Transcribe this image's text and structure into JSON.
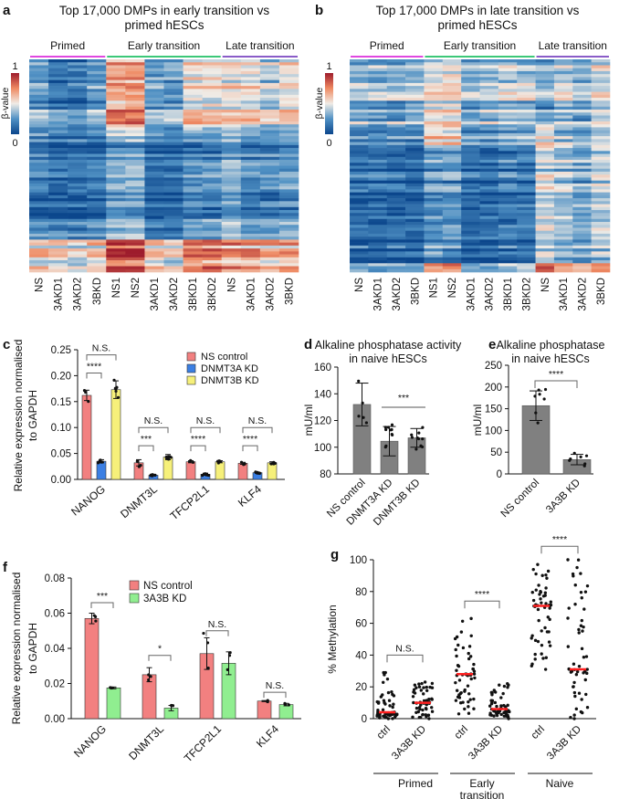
{
  "panel_letters": {
    "a": "a",
    "b": "b",
    "c": "c",
    "d": "d",
    "e": "e",
    "f": "f",
    "g": "g"
  },
  "chart_data": [
    {
      "id": "a",
      "type": "heatmap",
      "title": [
        "Top 17,000 DMPs in early transition vs",
        "primed hESCs"
      ],
      "colorbar": {
        "label": "β-value",
        "min": 0,
        "max": 1,
        "min_label": "0",
        "max_label": "1"
      },
      "groups": [
        {
          "name": "Primed",
          "color": "#e048e0",
          "columns": [
            "NS",
            "3AKD1",
            "3AKD2",
            "3BKD"
          ]
        },
        {
          "name": "Early transition",
          "color": "#3cc878",
          "columns": [
            "NS1",
            "NS2",
            "3AKD1",
            "3AKD2",
            "3BKD1",
            "3BKD2"
          ]
        },
        {
          "name": "Late transition",
          "color": "#8a5cc8",
          "columns": [
            "NS",
            "3AKD1",
            "3AKD2",
            "3BKD"
          ]
        }
      ],
      "approx_cluster_mean_beta": [
        [
          0.3,
          0.2,
          0.15,
          0.55
        ],
        [
          0.2,
          0.15,
          0.12,
          0.5
        ],
        [
          0.2,
          0.15,
          0.12,
          0.45
        ],
        [
          0.3,
          0.2,
          0.15,
          0.55
        ],
        [
          0.7,
          0.45,
          0.3,
          0.85
        ],
        [
          0.72,
          0.45,
          0.3,
          0.88
        ],
        [
          0.3,
          0.15,
          0.12,
          0.55
        ],
        [
          0.3,
          0.15,
          0.12,
          0.5
        ],
        [
          0.55,
          0.35,
          0.2,
          0.75
        ],
        [
          0.55,
          0.35,
          0.2,
          0.75
        ],
        [
          0.55,
          0.35,
          0.3,
          0.7
        ],
        [
          0.55,
          0.3,
          0.2,
          0.65
        ],
        [
          0.45,
          0.25,
          0.2,
          0.6
        ],
        [
          0.55,
          0.3,
          0.25,
          0.65
        ]
      ]
    },
    {
      "id": "b",
      "type": "heatmap",
      "title": [
        "Top 17,000 DMPs in late transition vs",
        "primed hESCs"
      ],
      "colorbar": {
        "label": "β-value",
        "min": 0,
        "max": 1,
        "min_label": "0",
        "max_label": "1"
      },
      "groups": [
        {
          "name": "Primed",
          "color": "#e048e0",
          "columns": [
            "NS",
            "3AKD1",
            "3AKD2",
            "3BKD"
          ]
        },
        {
          "name": "Early transition",
          "color": "#3cc878",
          "columns": [
            "NS1",
            "NS2",
            "3AKD1",
            "3AKD2",
            "3BKD1",
            "3BKD2"
          ]
        },
        {
          "name": "Late transition",
          "color": "#8a5cc8",
          "columns": [
            "NS",
            "3AKD1",
            "3AKD2",
            "3BKD"
          ]
        }
      ],
      "approx_cluster_mean_beta": [
        [
          0.35,
          0.2,
          0.1,
          0.2
        ],
        [
          0.33,
          0.2,
          0.1,
          0.2
        ],
        [
          0.33,
          0.2,
          0.1,
          0.22
        ],
        [
          0.35,
          0.2,
          0.1,
          0.25
        ],
        [
          0.5,
          0.55,
          0.25,
          0.6
        ],
        [
          0.5,
          0.55,
          0.25,
          0.65
        ],
        [
          0.35,
          0.25,
          0.1,
          0.2
        ],
        [
          0.35,
          0.25,
          0.1,
          0.2
        ],
        [
          0.4,
          0.3,
          0.15,
          0.3
        ],
        [
          0.4,
          0.3,
          0.15,
          0.3
        ],
        [
          0.3,
          0.5,
          0.45,
          0.75
        ],
        [
          0.4,
          0.35,
          0.35,
          0.6
        ],
        [
          0.3,
          0.3,
          0.3,
          0.55
        ],
        [
          0.45,
          0.4,
          0.4,
          0.7
        ]
      ]
    },
    {
      "id": "c",
      "type": "bar",
      "ylabel": [
        "Relative expression normalised",
        "to GAPDH"
      ],
      "ylim": [
        0,
        0.25
      ],
      "yticks": [
        "0.00",
        "0.05",
        "0.10",
        "0.15",
        "0.20",
        "0.25"
      ],
      "categories": [
        "NANOG",
        "DNMT3L",
        "TFCP2L1",
        "KLF4"
      ],
      "series": [
        {
          "name": "NS control",
          "color": "#f28080",
          "values": [
            0.162,
            0.032,
            0.034,
            0.031
          ],
          "errors": [
            0.01,
            0.006,
            0.002,
            0.002
          ]
        },
        {
          "name": "DNMT3A KD",
          "color": "#3b7fe3",
          "values": [
            0.035,
            0.008,
            0.01,
            0.013
          ],
          "errors": [
            0.003,
            0.001,
            0.002,
            0.001
          ]
        },
        {
          "name": "DNMT3B KD",
          "color": "#f6f07a",
          "values": [
            0.173,
            0.043,
            0.034,
            0.032
          ],
          "errors": [
            0.017,
            0.005,
            0.002,
            0.002
          ]
        }
      ],
      "significance": [
        {
          "category": "NANOG",
          "ns_vs_3a": "****",
          "ns_vs_3b": "N.S."
        },
        {
          "category": "DNMT3L",
          "ns_vs_3a": "***",
          "ns_vs_3b": "N.S."
        },
        {
          "category": "TFCP2L1",
          "ns_vs_3a": "****",
          "ns_vs_3b": "N.S."
        },
        {
          "category": "KLF4",
          "ns_vs_3a": "****",
          "ns_vs_3b": "N.S."
        }
      ],
      "legend": "top-right"
    },
    {
      "id": "d",
      "type": "bar",
      "title": [
        "Alkaline phosphatase activity",
        "in naive hESCs"
      ],
      "ylabel": "mU/ml",
      "ylim": [
        80,
        160
      ],
      "yticks": [
        "80",
        "100",
        "120",
        "140",
        "160"
      ],
      "categories": [
        "NS control",
        "DNMT3A KD",
        "DNMT3B KD"
      ],
      "values": [
        132,
        104.5,
        107
      ],
      "errors": [
        16,
        11,
        7
      ],
      "color": "#808080",
      "significance": "***"
    },
    {
      "id": "e",
      "type": "bar",
      "title": [
        "Alkaline phosphatase",
        "in naive hESCs"
      ],
      "ylabel": "mU/ml",
      "ylim": [
        0,
        250
      ],
      "yticks": [
        "0",
        "50",
        "100",
        "150",
        "200",
        "250"
      ],
      "categories": [
        "NS control",
        "3A3B KD"
      ],
      "values": [
        157,
        33
      ],
      "errors": [
        34,
        12
      ],
      "color": "#808080",
      "significance": "****"
    },
    {
      "id": "f",
      "type": "bar",
      "ylabel": [
        "Relative expression normalised",
        "to GAPDH"
      ],
      "ylim": [
        0,
        0.08
      ],
      "yticks": [
        "0.00",
        "0.02",
        "0.04",
        "0.06",
        "0.08"
      ],
      "categories": [
        "NANOG",
        "DNMT3L",
        "TFCP2L1",
        "KLF4"
      ],
      "series": [
        {
          "name": "NS control",
          "color": "#f28080",
          "values": [
            0.057,
            0.025,
            0.037,
            0.01
          ],
          "errors": [
            0.003,
            0.004,
            0.009,
            0.0003
          ]
        },
        {
          "name": "3A3B KD",
          "color": "#90ee90",
          "values": [
            0.0175,
            0.006,
            0.0315,
            0.008
          ],
          "errors": [
            0.0005,
            0.0015,
            0.0065,
            0.0007
          ]
        }
      ],
      "significance": [
        "***",
        "*",
        "N.S.",
        "N.S."
      ],
      "legend": "top-center"
    },
    {
      "id": "g",
      "type": "scatter",
      "ylabel": "% Methylation",
      "ylim": [
        0,
        100
      ],
      "yticks": [
        "0",
        "20",
        "40",
        "60",
        "80",
        "100"
      ],
      "columns": [
        {
          "label": "ctrl",
          "group": "Primed",
          "median": 4,
          "range": [
            0,
            29
          ]
        },
        {
          "label": "3A3B KD",
          "group": "Primed",
          "median": 10,
          "range": [
            0,
            23
          ]
        },
        {
          "label": "ctrl",
          "group": "Early transition",
          "median": 28,
          "range": [
            3,
            63
          ]
        },
        {
          "label": "3A3B KD",
          "group": "Early transition",
          "median": 6,
          "range": [
            0,
            22
          ]
        },
        {
          "label": "ctrl",
          "group": "Naive",
          "median": 71,
          "range": [
            31,
            97
          ]
        },
        {
          "label": "3A3B KD",
          "group": "Naive",
          "median": 31,
          "range": [
            0,
            100
          ]
        }
      ],
      "groups": [
        [
          "Primed"
        ],
        [
          "Early",
          "transition"
        ],
        [
          "Naive"
        ]
      ],
      "significance": [
        "N.S.",
        "****",
        "****"
      ],
      "median_color": "#ff2020"
    }
  ]
}
